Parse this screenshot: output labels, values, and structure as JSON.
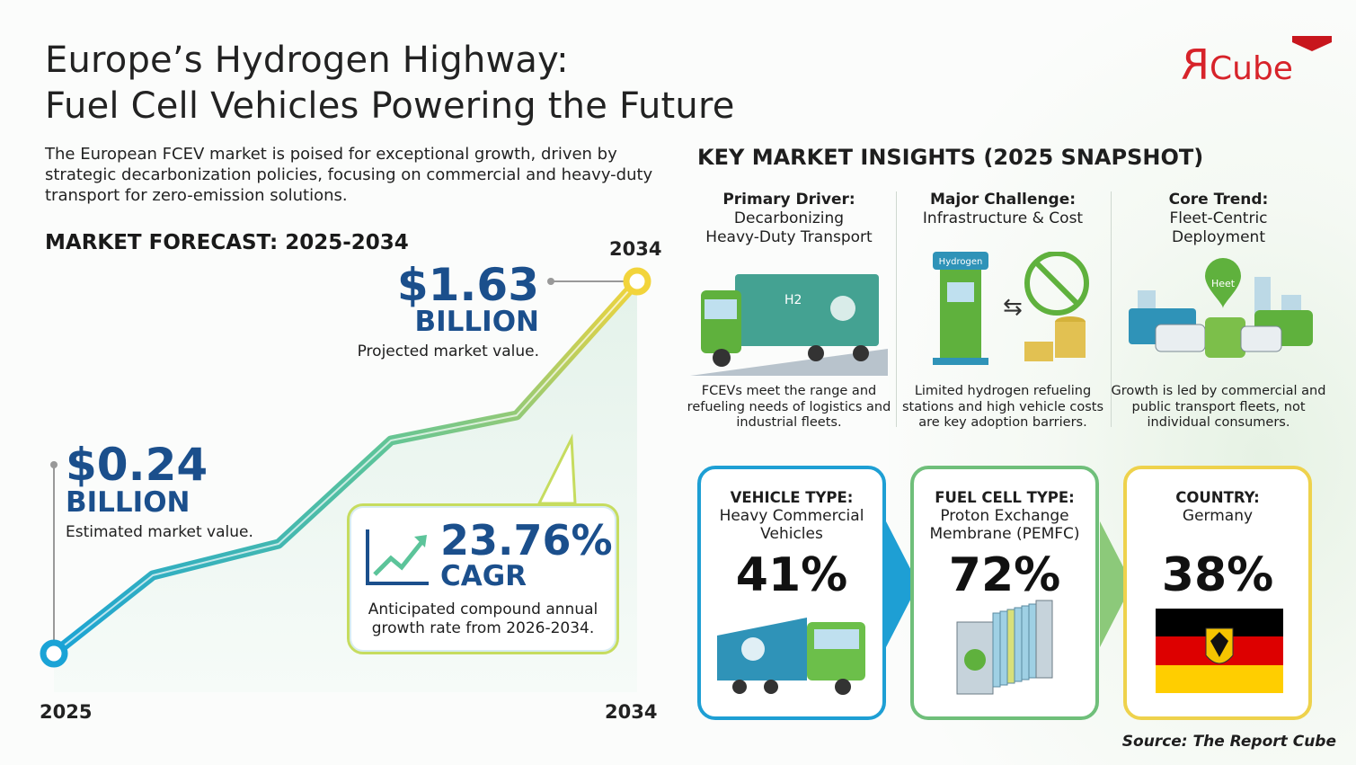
{
  "title_line1": "Europe’s Hydrogen Highway:",
  "title_line2": "Fuel Cell Vehicles Powering the Future",
  "intro": "The European FCEV market is poised for exceptional growth, driven by strategic decarbonization policies, focusing on commercial and heavy-duty transport for zero-emission solutions.",
  "logo": {
    "text_r": "R",
    "text_cube": "Cube",
    "color": "#d7232a"
  },
  "forecast": {
    "heading": "MARKET FORECAST: 2025-2034",
    "start": {
      "year": "2025",
      "value": "$0.24",
      "unit": "BILLION",
      "caption": "Estimated market value."
    },
    "end": {
      "year": "2034",
      "value": "$1.63",
      "unit": "BILLION",
      "caption": "Projected market value."
    },
    "cagr": {
      "value": "23.76%",
      "label": "CAGR",
      "caption": "Anticipated compound annual growth rate from 2026-2034."
    }
  },
  "chart_data": {
    "type": "line",
    "x": [
      "2025",
      "2034"
    ],
    "series": [
      {
        "values": [
          0.24,
          1.63
        ]
      }
    ],
    "unit": "USD billion",
    "xlabel": "",
    "ylabel": "",
    "grid": false,
    "colors": [
      "#1aa3d6",
      "#f2d43b"
    ]
  },
  "insights": {
    "heading": "KEY MARKET INSIGHTS (2025 SNAPSHOT)",
    "columns": [
      {
        "heading": "Primary Driver:",
        "sub1": "Decarbonizing",
        "sub2": "Heavy-Duty Transport",
        "desc": "FCEVs meet the range and refueling needs of logistics and industrial fleets.",
        "icon": "hydrogen-truck-icon",
        "badge": "H2"
      },
      {
        "heading": "Major Challenge:",
        "sub1": "Infrastructure & Cost",
        "sub2": "",
        "desc": "Limited hydrogen refueling stations and high vehicle costs are key adoption barriers.",
        "icon": "hydrogen-pump-icon",
        "badge": "Hydrogen"
      },
      {
        "heading": "Core Trend:",
        "sub1": "Fleet-Centric",
        "sub2": "Deployment",
        "desc": "Growth is led by commercial and public transport fleets, not individual consumers.",
        "icon": "fleet-icon",
        "badge": "Heet"
      }
    ]
  },
  "segments": [
    {
      "heading": "VEHICLE TYPE:",
      "sub1": "Heavy Commercial",
      "sub2": "Vehicles",
      "share": "41%",
      "color": "#1e9fd4",
      "icon": "truck-icon"
    },
    {
      "heading": "FUEL CELL TYPE:",
      "sub1": "Proton Exchange",
      "sub2": "Membrane (PEMFC)",
      "share": "72%",
      "color": "#6fbf7a",
      "icon": "fuel-cell-stack-icon"
    },
    {
      "heading": "COUNTRY:",
      "sub1": "Germany",
      "sub2": "",
      "share": "38%",
      "color": "#eed24c",
      "icon": "germany-flag-icon"
    }
  ],
  "source": "Source: The Report Cube"
}
